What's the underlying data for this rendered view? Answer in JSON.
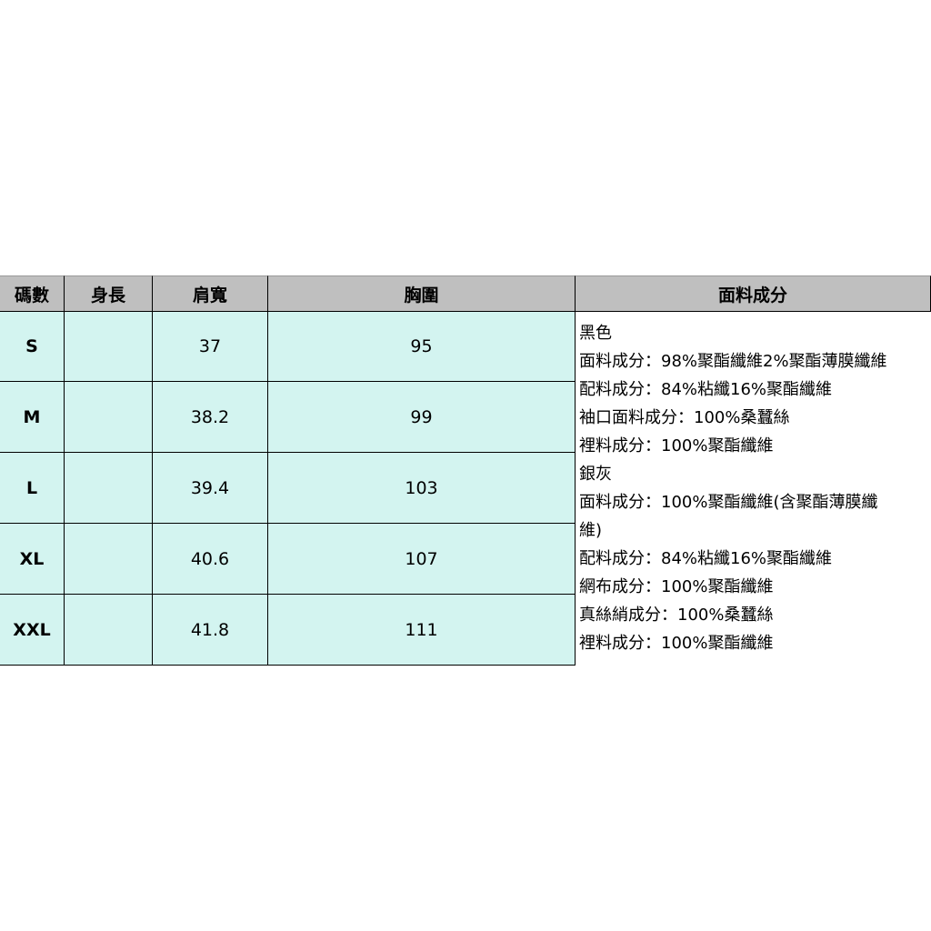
{
  "table": {
    "header": [
      "碼數",
      "身長",
      "肩寬",
      "胸圍",
      "面料成分"
    ],
    "rows": [
      {
        "size": "S",
        "shoulder": 37,
        "chest": 95
      },
      {
        "size": "M",
        "shoulder": 38.2,
        "chest": 99
      },
      {
        "size": "L",
        "shoulder": 39.4,
        "chest": 103
      },
      {
        "size": "XL",
        "shoulder": 40.6,
        "chest": 107
      },
      {
        "size": "XXL",
        "shoulder": 41.8,
        "chest": 111
      }
    ],
    "fabric": [
      "黑色",
      "面料成分：98%聚酯纖維2%聚酯薄膜纖維",
      "配料成分：84%粘纖16%聚酯纖維",
      "袖口面料成分：100%桑蠶絲",
      "裡料成分：100%聚酯纖維",
      "銀灰",
      "面料成分：100%聚酯纖維(含聚酯薄膜纖",
      "維)",
      "配料成分：84%粘纖16%聚酯纖維",
      "網布成分：100%聚酯纖維",
      "真絲綃成分：100%桑蠶絲",
      "裡料成分：100%聚酯纖維"
    ]
  }
}
